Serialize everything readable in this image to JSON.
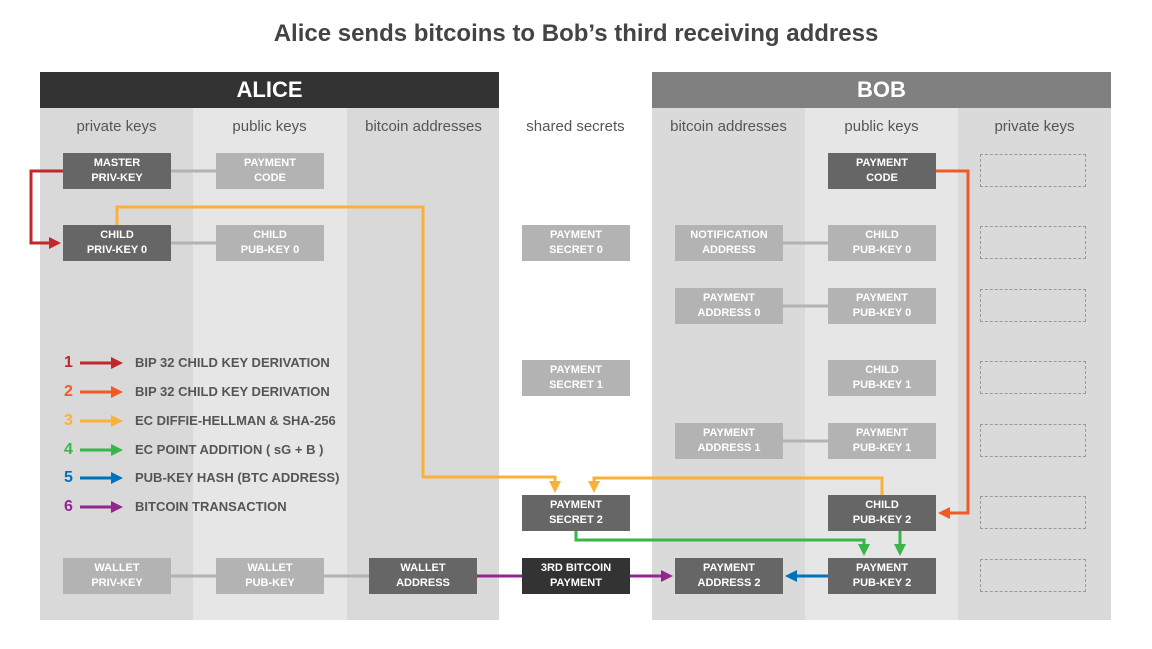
{
  "title": "Alice sends bitcoins to Bob’s third receiving address",
  "alice": {
    "header": "ALICE",
    "columns": [
      "private keys",
      "public keys",
      "bitcoin addresses"
    ],
    "boxes": {
      "master": "MASTER\nPRIV-KEY",
      "code": "PAYMENT\nCODE",
      "childpriv": "CHILD\nPRIV-KEY 0",
      "childpub": "CHILD\nPUB-KEY 0",
      "wpriv": "WALLET\nPRIV-KEY",
      "wpub": "WALLET\nPUB-KEY",
      "waddr": "WALLET\nADDRESS"
    }
  },
  "shared": {
    "header": "shared secrets",
    "boxes": {
      "s0": "PAYMENT\nSECRET 0",
      "s1": "PAYMENT\nSECRET 1",
      "s2": "PAYMENT\nSECRET 2",
      "pay": "3RD BITCOIN\nPAYMENT"
    }
  },
  "bob": {
    "header": "BOB",
    "columns": [
      "bitcoin addresses",
      "public keys",
      "private keys"
    ],
    "boxes": {
      "notif": "NOTIFICATION\nADDRESS",
      "a0": "PAYMENT\nADDRESS 0",
      "a1": "PAYMENT\nADDRESS 1",
      "a2": "PAYMENT\nADDRESS 2",
      "code": "PAYMENT\nCODE",
      "c0": "CHILD\nPUB-KEY 0",
      "p0": "PAYMENT\nPUB-KEY 0",
      "c1": "CHILD\nPUB-KEY 1",
      "p1": "PAYMENT\nPUB-KEY 1",
      "c2": "CHILD\nPUB-KEY 2",
      "p2": "PAYMENT\nPUB-KEY 2"
    }
  },
  "legend": [
    {
      "num": "1",
      "label": "BIP 32 CHILD KEY DERIVATION",
      "color": "#c1272d"
    },
    {
      "num": "2",
      "label": "BIP 32 CHILD KEY DERIVATION",
      "color": "#f15a24"
    },
    {
      "num": "3",
      "label": "EC DIFFIE-HELLMAN & SHA-256",
      "color": "#fbb03b"
    },
    {
      "num": "4",
      "label": "EC POINT ADDITION ( sG + B )",
      "color": "#39b54a"
    },
    {
      "num": "5",
      "label": "PUB-KEY HASH (BTC ADDRESS)",
      "color": "#0071bc"
    },
    {
      "num": "6",
      "label": "BITCOIN TRANSACTION",
      "color": "#93278f"
    }
  ]
}
